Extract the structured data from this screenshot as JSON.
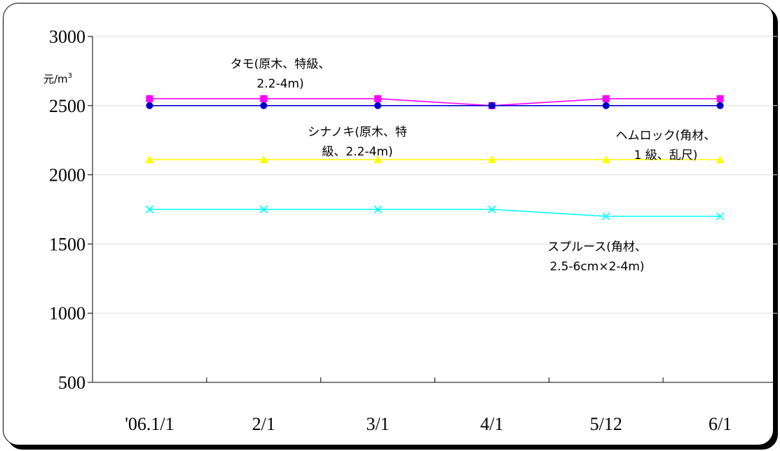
{
  "chart_data": {
    "type": "line",
    "categories": [
      "'06.1/1",
      "2/1",
      "3/1",
      "4/1",
      "5/12",
      "6/1"
    ],
    "ylim": [
      500,
      3000
    ],
    "yticks": [
      500,
      1000,
      1500,
      2000,
      2500,
      3000
    ],
    "ylabel": "",
    "unit_label": "元/m",
    "unit_sup": "3",
    "grid": "horizontal",
    "series": [
      {
        "name_lines": [
          "タモ(原木、特級、",
          "2.2-4m)"
        ],
        "color": "#ff00ff",
        "marker": "square",
        "values": [
          2550,
          2550,
          2550,
          2500,
          2550,
          2550
        ]
      },
      {
        "name_lines": [],
        "color": "#0000cc",
        "marker": "circle",
        "values": [
          2500,
          2500,
          2500,
          2500,
          2500,
          2500
        ]
      },
      {
        "name_lines": [
          "シナノキ(原木、特",
          "級、2.2-4m)"
        ],
        "color": "#ffff00",
        "marker": "triangle",
        "values": [
          2110,
          2110,
          2110,
          2110,
          2110,
          2110
        ]
      },
      {
        "name_lines": [
          "スプルース(角材、",
          "2.5-6cm×2-4m)"
        ],
        "color": "#00ffff",
        "marker": "x",
        "values": [
          1750,
          1750,
          1750,
          1750,
          1700,
          1700
        ]
      }
    ],
    "annotations": [
      {
        "lines": [
          "タモ(原木、特級、",
          "2.2-4m)"
        ]
      },
      {
        "lines": [
          "シナノキ(原木、特",
          "級、2.2-4m)"
        ]
      },
      {
        "lines": [
          "ヘムロック(角材、",
          "1 級、乱尺)"
        ]
      },
      {
        "lines": [
          "スプルース(角材、",
          "2.5-6cm×2-4m)"
        ]
      }
    ]
  }
}
